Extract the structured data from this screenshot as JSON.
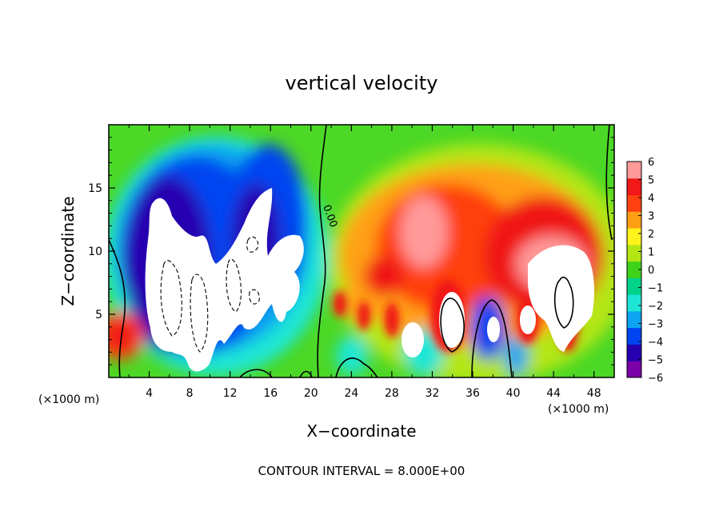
{
  "chart_data": {
    "type": "heatmap",
    "title": "vertical velocity",
    "xlabel": "X−coordinate",
    "ylabel": "Z−coordinate",
    "x_unit_left": "(×1000 m)",
    "x_unit_right": "(×1000 m)",
    "footer": "CONTOUR INTERVAL = 8.000E+00",
    "contour_label": "0.00",
    "xlim": [
      0,
      50
    ],
    "ylim": [
      0,
      20
    ],
    "x_ticks": [
      4,
      8,
      12,
      16,
      20,
      24,
      28,
      32,
      36,
      40,
      44,
      48
    ],
    "y_ticks": [
      5,
      10,
      15
    ],
    "colorbar": {
      "min": -6,
      "max": 6,
      "tick_values": [
        6,
        5,
        4,
        3,
        2,
        1,
        0,
        -1,
        -2,
        -3,
        -4,
        -5,
        -6
      ],
      "tick_labels": [
        "6",
        "5",
        "4",
        "3",
        "2",
        "1",
        "0",
        "−1",
        "−2",
        "−3",
        "−4",
        "−5",
        "−6"
      ],
      "colors": [
        "#7a00a8",
        "#2600b0",
        "#0044f0",
        "#0aa4f0",
        "#1ee6d6",
        "#00d28a",
        "#3ed21a",
        "#b4e614",
        "#fff31c",
        "#ffa014",
        "#ff4010",
        "#f01818",
        "#ff9a9a"
      ]
    }
  }
}
